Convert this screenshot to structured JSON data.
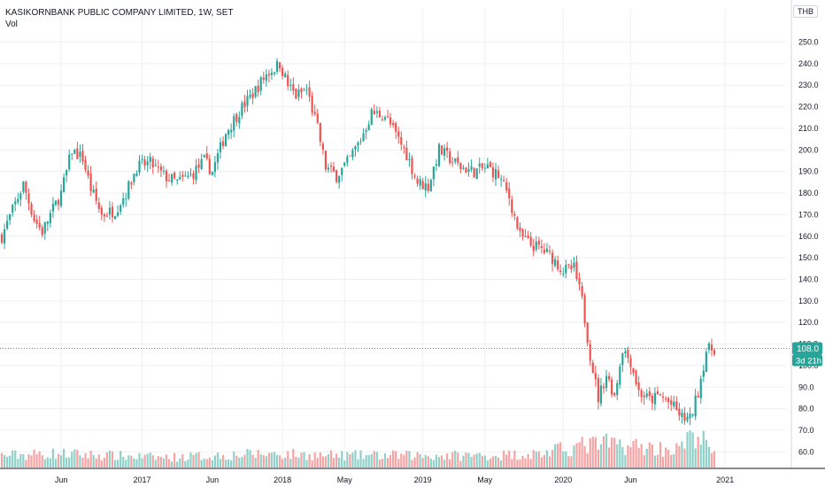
{
  "legend": {
    "title": "KASIKORNBANK PUBLIC COMPANY LIMITED, 1W, SET",
    "volume_label": "Vol"
  },
  "currency": "THB",
  "colors": {
    "up": "#26a69a",
    "down": "#ef5350",
    "up_vol": "#8ed1c8",
    "down_vol": "#f5a3a3",
    "grid": "#eef0f3",
    "axis": "#131722"
  },
  "chart_data": {
    "type": "candlestick",
    "title": "KASIKORNBANK PUBLIC COMPANY LIMITED, 1W, SET",
    "ylim": [
      54,
      258
    ],
    "y_ticks": [
      "250.0",
      "240.0",
      "230.0",
      "220.0",
      "210.0",
      "200.0",
      "190.0",
      "180.0",
      "170.0",
      "160.0",
      "150.0",
      "140.0",
      "130.0",
      "120.0",
      "110.0",
      "100.0",
      "90.0",
      "80.0",
      "70.0",
      "60.0"
    ],
    "x_tick_labels": [
      "Jun",
      "2017",
      "Jun",
      "2018",
      "May",
      "2019",
      "May",
      "2020",
      "Jun",
      "2021"
    ],
    "x_ticks_week": [
      22,
      52,
      78,
      104,
      127,
      156,
      179,
      208,
      233,
      268
    ],
    "last_price": "108.0",
    "countdown": "3d 21h",
    "weeks": 265,
    "close_anchors": [
      [
        0,
        160
      ],
      [
        5,
        175
      ],
      [
        8,
        184
      ],
      [
        12,
        168
      ],
      [
        15,
        162
      ],
      [
        18,
        170
      ],
      [
        22,
        180
      ],
      [
        26,
        200
      ],
      [
        30,
        196
      ],
      [
        33,
        182
      ],
      [
        37,
        170
      ],
      [
        42,
        172
      ],
      [
        46,
        180
      ],
      [
        50,
        192
      ],
      [
        55,
        194
      ],
      [
        60,
        188
      ],
      [
        65,
        185
      ],
      [
        70,
        188
      ],
      [
        75,
        195
      ],
      [
        78,
        190
      ],
      [
        83,
        208
      ],
      [
        88,
        218
      ],
      [
        93,
        226
      ],
      [
        98,
        235
      ],
      [
        103,
        240
      ],
      [
        106,
        230
      ],
      [
        109,
        225
      ],
      [
        113,
        228
      ],
      [
        117,
        210
      ],
      [
        120,
        192
      ],
      [
        124,
        188
      ],
      [
        128,
        194
      ],
      [
        133,
        205
      ],
      [
        137,
        217
      ],
      [
        142,
        216
      ],
      [
        146,
        207
      ],
      [
        150,
        198
      ],
      [
        154,
        185
      ],
      [
        158,
        183
      ],
      [
        162,
        200
      ],
      [
        166,
        196
      ],
      [
        170,
        192
      ],
      [
        175,
        190
      ],
      [
        180,
        192
      ],
      [
        184,
        188
      ],
      [
        188,
        178
      ],
      [
        192,
        160
      ],
      [
        196,
        156
      ],
      [
        200,
        154
      ],
      [
        204,
        150
      ],
      [
        208,
        144
      ],
      [
        212,
        145
      ],
      [
        215,
        130
      ],
      [
        218,
        105
      ],
      [
        221,
        85
      ],
      [
        224,
        96
      ],
      [
        227,
        86
      ],
      [
        230,
        108
      ],
      [
        233,
        102
      ],
      [
        236,
        88
      ],
      [
        240,
        84
      ],
      [
        244,
        86
      ],
      [
        248,
        82
      ],
      [
        252,
        76
      ],
      [
        255,
        75
      ],
      [
        258,
        88
      ],
      [
        261,
        107
      ],
      [
        264,
        108
      ]
    ],
    "volume_anchors": [
      [
        0,
        0.3
      ],
      [
        20,
        0.35
      ],
      [
        40,
        0.3
      ],
      [
        60,
        0.25
      ],
      [
        80,
        0.3
      ],
      [
        100,
        0.35
      ],
      [
        120,
        0.3
      ],
      [
        140,
        0.3
      ],
      [
        160,
        0.3
      ],
      [
        180,
        0.3
      ],
      [
        200,
        0.35
      ],
      [
        215,
        0.55
      ],
      [
        225,
        0.6
      ],
      [
        240,
        0.5
      ],
      [
        250,
        0.45
      ],
      [
        258,
        0.85
      ],
      [
        264,
        0.3
      ]
    ]
  }
}
